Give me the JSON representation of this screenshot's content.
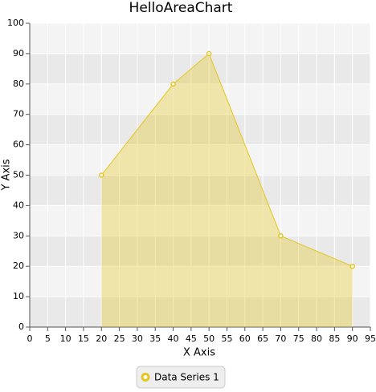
{
  "chart_data": {
    "type": "area",
    "title": "HelloAreaChart",
    "x_label": "X Axis",
    "y_label": "Y Axis",
    "x": [
      20,
      40,
      50,
      70,
      90
    ],
    "series": [
      {
        "name": "Data Series 1",
        "color": "#e6c520",
        "values": [
          50,
          80,
          90,
          30,
          20
        ]
      }
    ],
    "xlim": [
      0,
      95
    ],
    "xticks": [
      0,
      5,
      10,
      15,
      20,
      25,
      30,
      35,
      40,
      45,
      50,
      55,
      60,
      65,
      70,
      75,
      80,
      85,
      90,
      95
    ],
    "ylim": [
      0,
      100
    ],
    "yticks": [
      0,
      10,
      20,
      30,
      40,
      50,
      60,
      70,
      80,
      90,
      100
    ],
    "grid": true,
    "legend": "bottom"
  }
}
